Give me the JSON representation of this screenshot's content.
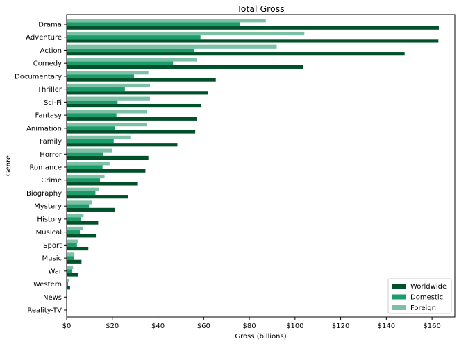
{
  "chart_data": {
    "type": "bar",
    "orientation": "horizontal",
    "title": "Total Gross",
    "xlabel": "Gross (billions)",
    "ylabel": "Genre",
    "xlim": [
      0,
      170
    ],
    "x_ticks": [
      {
        "value": 0,
        "label": "$0"
      },
      {
        "value": 20,
        "label": "$20"
      },
      {
        "value": 40,
        "label": "$40"
      },
      {
        "value": 60,
        "label": "$60"
      },
      {
        "value": 80,
        "label": "$80"
      },
      {
        "value": 100,
        "label": "$100"
      },
      {
        "value": 120,
        "label": "$120"
      },
      {
        "value": 140,
        "label": "$140"
      },
      {
        "value": 160,
        "label": "$160"
      }
    ],
    "categories": [
      "Drama",
      "Adventure",
      "Action",
      "Comedy",
      "Documentary",
      "Thriller",
      "Sci-Fi",
      "Fantasy",
      "Animation",
      "Family",
      "Horror",
      "Romance",
      "Crime",
      "Biography",
      "Mystery",
      "History",
      "Musical",
      "Sport",
      "Music",
      "War",
      "Western",
      "News",
      "Reality-TV"
    ],
    "series": [
      {
        "name": "Worldwide",
        "color": "#00512a",
        "values": [
          163.0,
          162.8,
          148.0,
          103.5,
          65.3,
          62.0,
          58.8,
          57.0,
          56.3,
          48.5,
          35.8,
          34.5,
          31.2,
          26.8,
          21.0,
          13.8,
          12.8,
          9.5,
          6.5,
          5.0,
          1.5,
          0.1,
          0.05
        ]
      },
      {
        "name": "Domestic",
        "color": "#1a9c6b",
        "values": [
          75.8,
          58.6,
          56.0,
          46.6,
          29.5,
          25.5,
          22.3,
          21.8,
          21.1,
          20.6,
          15.9,
          15.7,
          14.6,
          12.6,
          9.8,
          6.4,
          5.8,
          4.5,
          3.1,
          2.2,
          0.6,
          0.05,
          0.02
        ]
      },
      {
        "name": "Foreign",
        "color": "#7cc0a5",
        "values": [
          87.2,
          104.1,
          92.0,
          56.9,
          35.8,
          36.5,
          36.5,
          35.2,
          35.2,
          27.9,
          19.9,
          18.8,
          16.6,
          14.2,
          11.2,
          7.4,
          7.0,
          5.0,
          3.4,
          2.8,
          0.9,
          0.05,
          0.03
        ]
      }
    ],
    "legend_position": "bottom-right",
    "grid": false
  }
}
